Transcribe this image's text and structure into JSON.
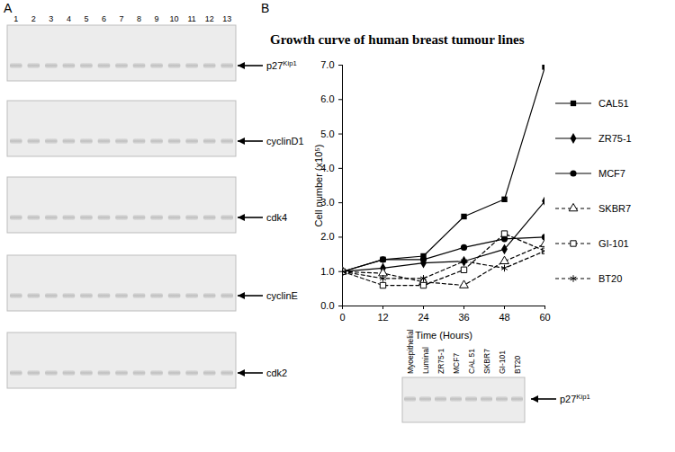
{
  "panel_labels": [
    "A",
    "B"
  ],
  "panel_a": {
    "lanes": [
      1,
      2,
      3,
      4,
      5,
      6,
      7,
      8,
      9,
      10,
      11,
      12,
      13
    ],
    "blots": [
      {
        "base": "p27",
        "superscript": "Kip1"
      },
      {
        "base": "cyclinD1"
      },
      {
        "base": "cdk4"
      },
      {
        "base": "cyclinE"
      },
      {
        "base": "cdk2"
      }
    ]
  },
  "chart_data": {
    "type": "line",
    "title": "Growth curve of human breast tumour lines",
    "x_label": "Time (Hours)",
    "y_label": "Cell number (x10⁵)",
    "x": [
      0,
      12,
      24,
      36,
      48,
      60
    ],
    "xlim": [
      0,
      60
    ],
    "xticks": [
      0,
      12,
      24,
      36,
      48,
      60
    ],
    "ylim": [
      0,
      7
    ],
    "yticks": [
      0,
      1,
      2,
      3,
      4,
      5,
      6,
      7
    ],
    "legend": "right",
    "series": [
      {
        "name": "CAL51",
        "color": "#000000",
        "marker": "square",
        "line_style": "solid",
        "values": [
          1,
          1.35,
          1.45,
          2.6,
          3.1,
          6.95
        ]
      },
      {
        "name": "ZR75-1",
        "color": "#000000",
        "marker": "diamond",
        "line_style": "solid",
        "values": [
          1,
          1.1,
          1.25,
          1.3,
          1.65,
          3.05
        ]
      },
      {
        "name": "MCF7",
        "color": "#000000",
        "marker": "circle",
        "line_style": "solid",
        "values": [
          1,
          1.35,
          1.35,
          1.7,
          1.95,
          2.0
        ]
      },
      {
        "name": "SKBR7",
        "color": "#000000",
        "marker": "triangle-open",
        "line_style": "dashed",
        "values": [
          1,
          0.95,
          0.7,
          0.6,
          1.3,
          1.8
        ]
      },
      {
        "name": "GI-101",
        "color": "#000000",
        "marker": "square-open",
        "line_style": "dashed",
        "values": [
          1,
          0.6,
          0.6,
          1.05,
          2.1,
          1.6
        ]
      },
      {
        "name": "BT20",
        "color": "#000000",
        "marker": "asterisk",
        "line_style": "dashed",
        "values": [
          1,
          0.8,
          0.8,
          1.3,
          1.1,
          1.6
        ]
      }
    ]
  },
  "panel_b_blot": {
    "lanes": [
      "Myoepithelial",
      "Luminal",
      "ZR75-1",
      "MCF7",
      "CAL 51",
      "SKBR7",
      "GI-101",
      "BT20"
    ],
    "band": {
      "base": "p27",
      "superscript": "Kip1"
    }
  }
}
